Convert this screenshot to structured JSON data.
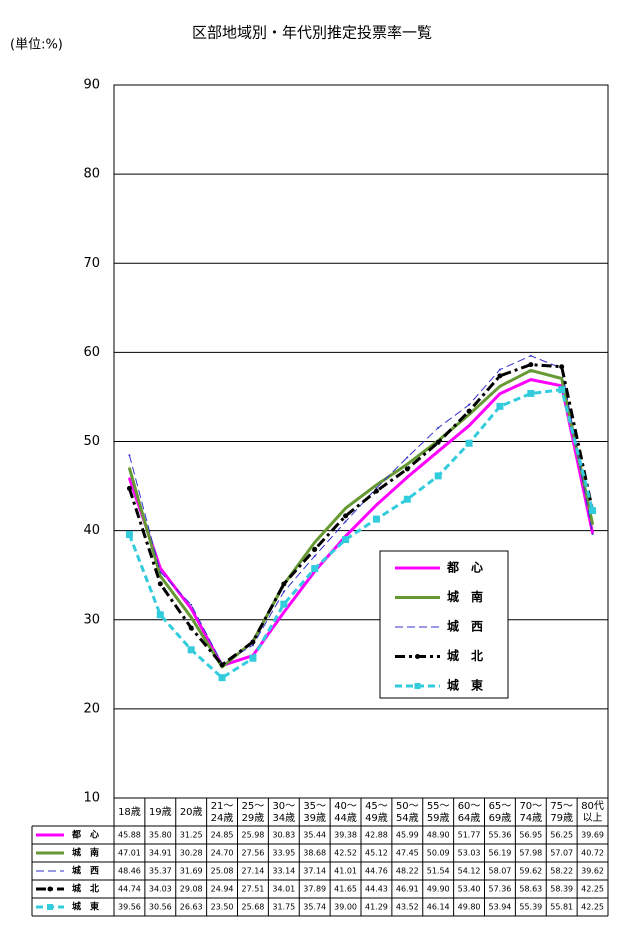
{
  "chart_data": {
    "type": "line",
    "title": "区部地域別・年代別推定投票率一覧",
    "unit": "(単位:%)",
    "categories": [
      "18歳",
      "19歳",
      "20歳",
      "21～\n24歳",
      "25～\n29歳",
      "30～\n34歳",
      "35～\n39歳",
      "40～\n44歳",
      "45～\n49歳",
      "50～\n54歳",
      "55～\n59歳",
      "60～\n64歳",
      "65～\n69歳",
      "70～\n74歳",
      "75～\n79歳",
      "80代\n以上"
    ],
    "ylim": [
      10,
      90
    ],
    "yticks": [
      10,
      20,
      30,
      40,
      50,
      60,
      70,
      80,
      90
    ],
    "grid": true,
    "series": [
      {
        "name": "都　心",
        "color": "#ff00ff",
        "width": 3,
        "dash": "none",
        "marker": "none",
        "values": [
          45.88,
          35.8,
          31.25,
          24.85,
          25.98,
          30.83,
          35.44,
          39.38,
          42.88,
          45.99,
          48.9,
          51.77,
          55.36,
          56.95,
          56.25,
          39.69
        ],
        "value_labels": [
          "45.88",
          "35.80",
          "31.25",
          "24.85",
          "25.98",
          "30.83",
          "35.44",
          "39.38",
          "42.88",
          "45.99",
          "48.90",
          "51.77",
          "55.36",
          "56.95",
          "56.25",
          "39.69"
        ]
      },
      {
        "name": "城　南",
        "color": "#669933",
        "width": 3,
        "dash": "none",
        "marker": "none",
        "values": [
          47.01,
          34.91,
          30.28,
          24.7,
          27.56,
          33.95,
          38.68,
          42.52,
          45.12,
          47.45,
          50.09,
          53.03,
          56.19,
          57.98,
          57.07,
          40.72
        ],
        "value_labels": [
          "47.01",
          "34.91",
          "30.28",
          "24.70",
          "27.56",
          "33.95",
          "38.68",
          "42.52",
          "45.12",
          "47.45",
          "50.09",
          "53.03",
          "56.19",
          "57.98",
          "57.07",
          "40.72"
        ]
      },
      {
        "name": "城　西",
        "color": "#3333cc",
        "width": 1,
        "dash": "8,4",
        "marker": "none",
        "values": [
          48.46,
          35.37,
          31.69,
          25.08,
          27.14,
          33.14,
          37.14,
          41.01,
          44.76,
          48.22,
          51.54,
          54.12,
          58.07,
          59.62,
          58.22,
          39.62
        ],
        "value_labels": [
          "48.46",
          "35.37",
          "31.69",
          "25.08",
          "27.14",
          "33.14",
          "37.14",
          "41.01",
          "44.76",
          "48.22",
          "51.54",
          "54.12",
          "58.07",
          "59.62",
          "58.22",
          "39.62"
        ]
      },
      {
        "name": "城　北",
        "color": "#000000",
        "width": 3,
        "dash": "10,4,3,4",
        "marker": "dot",
        "values": [
          44.74,
          34.03,
          29.08,
          24.94,
          27.51,
          34.01,
          37.89,
          41.65,
          44.43,
          46.91,
          49.9,
          53.4,
          57.36,
          58.63,
          58.39,
          42.25
        ],
        "value_labels": [
          "44.74",
          "34.03",
          "29.08",
          "24.94",
          "27.51",
          "34.01",
          "37.89",
          "41.65",
          "44.43",
          "46.91",
          "49.90",
          "53.40",
          "57.36",
          "58.63",
          "58.39",
          "42.25"
        ]
      },
      {
        "name": "城　東",
        "color": "#33ccdd",
        "width": 3,
        "dash": "7,4",
        "marker": "square",
        "values": [
          39.56,
          30.56,
          26.63,
          23.5,
          25.68,
          31.75,
          35.74,
          39.0,
          41.29,
          43.52,
          46.14,
          49.8,
          53.94,
          55.39,
          55.81,
          42.25
        ],
        "value_labels": [
          "39.56",
          "30.56",
          "26.63",
          "23.50",
          "25.68",
          "31.75",
          "35.74",
          "39.00",
          "41.29",
          "43.52",
          "46.14",
          "49.80",
          "53.94",
          "55.39",
          "55.81",
          "42.25"
        ]
      }
    ]
  }
}
